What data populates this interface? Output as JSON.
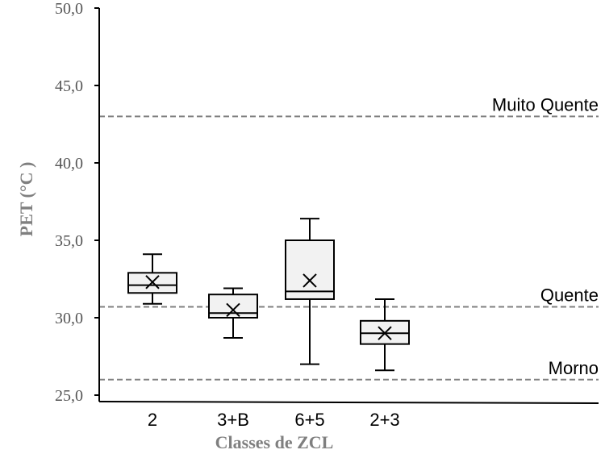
{
  "chart_data": {
    "type": "box",
    "xlabel": "Classes de ZCL",
    "ylabel": "PET (°C )",
    "ylim": [
      25,
      50
    ],
    "yticks": [
      {
        "value": 25,
        "label": "25,0"
      },
      {
        "value": 30,
        "label": "30,0"
      },
      {
        "value": 35,
        "label": "35,0"
      },
      {
        "value": 40,
        "label": "40,0"
      },
      {
        "value": 45,
        "label": "45,0"
      },
      {
        "value": 50,
        "label": "50,0"
      }
    ],
    "categories": [
      "2",
      "3+B",
      "6+5",
      "2+3"
    ],
    "boxes": [
      {
        "category": "2",
        "min": 30.9,
        "q1": 31.6,
        "median": 32.1,
        "q3": 32.9,
        "max": 34.1,
        "mean": 32.3
      },
      {
        "category": "3+B",
        "min": 28.7,
        "q1": 30.0,
        "median": 30.3,
        "q3": 31.5,
        "max": 31.9,
        "mean": 30.5
      },
      {
        "category": "6+5",
        "min": 27.0,
        "q1": 31.2,
        "median": 31.7,
        "q3": 35.0,
        "max": 36.4,
        "mean": 32.4
      },
      {
        "category": "2+3",
        "min": 26.6,
        "q1": 28.3,
        "median": 29.0,
        "q3": 29.8,
        "max": 31.2,
        "mean": 29.0
      }
    ],
    "reference_lines": [
      {
        "label": "Muito Quente",
        "value": 43.0
      },
      {
        "label": "Quente",
        "value": 30.7
      },
      {
        "label": "Morno",
        "value": 26.0
      }
    ],
    "colors": {
      "box_fill": "#f2f2f2",
      "box_stroke": "#000000",
      "reference_line": "#808080",
      "axis_title": "#7f7f7f",
      "tick_label": "#555555"
    },
    "grid": false,
    "legend": "none"
  }
}
